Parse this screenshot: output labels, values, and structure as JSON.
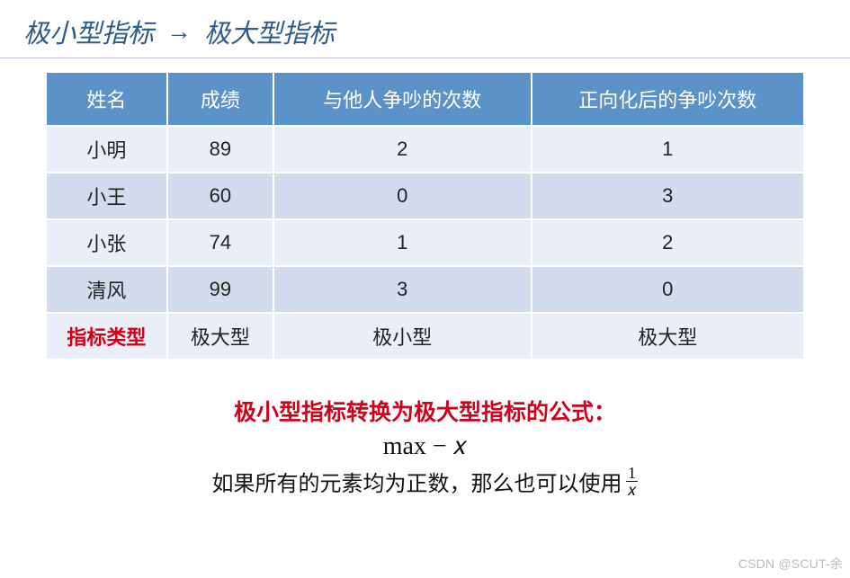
{
  "title": {
    "left": "极小型指标",
    "arrow": "→",
    "right": "极大型指标",
    "color": "#2e5b8a",
    "font_size_pt": 22,
    "italic": true
  },
  "table": {
    "type": "table",
    "header_bg": "#5b92c7",
    "header_fg": "#ffffff",
    "band_a_bg": "#e9eef7",
    "band_b_bg": "#d2dced",
    "border_color": "#ffffff",
    "font_size_pt": 17,
    "columns": [
      {
        "label": "姓名",
        "width_pct": 16
      },
      {
        "label": "成绩",
        "width_pct": 14
      },
      {
        "label": "与他人争吵的次数",
        "width_pct": 34
      },
      {
        "label": "正向化后的争吵次数",
        "width_pct": 36
      }
    ],
    "rows": [
      [
        "小明",
        "89",
        "2",
        "1"
      ],
      [
        "小王",
        "60",
        "0",
        "3"
      ],
      [
        "小张",
        "74",
        "1",
        "2"
      ],
      [
        "清风",
        "99",
        "3",
        "0"
      ]
    ],
    "footer": {
      "first_label": "指标类型",
      "first_color": "#d0021b",
      "values": [
        "极大型",
        "极小型",
        "极大型"
      ]
    }
  },
  "notes": {
    "formula_title": "极小型指标转换为极大型指标的公式：",
    "formula_title_color": "#d0021b",
    "formula_body": "max − 𝑥",
    "note_prefix": "如果所有的元素均为正数，那么也可以使用",
    "fraction": {
      "num": "1",
      "den": "𝑥"
    }
  },
  "watermark": "CSDN @SCUT-余"
}
